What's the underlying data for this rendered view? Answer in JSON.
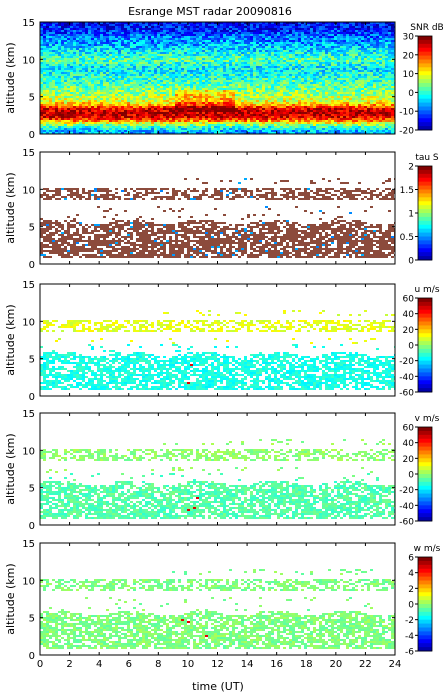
{
  "title": "Esrange MST radar 20090816",
  "xlabel": "time (UT)",
  "chart_data": [
    {
      "type": "heatmap",
      "id": "snr",
      "ylabel": "altitude (km)",
      "xlim": [
        0,
        24
      ],
      "ylim": [
        0,
        15
      ],
      "xticks": [
        "0",
        "2",
        "4",
        "6",
        "8",
        "10",
        "12",
        "14",
        "16",
        "18",
        "20",
        "22",
        "24"
      ],
      "yticks": [
        "0",
        "5",
        "10",
        "15"
      ],
      "colorbar": {
        "label": "SNR dB",
        "range": [
          -20,
          30
        ],
        "ticks": [
          "30",
          "20",
          "10",
          "0",
          "-10",
          "-20"
        ]
      },
      "profile_km": [
        0.5,
        1,
        1.5,
        2,
        2.5,
        3,
        3.5,
        4,
        4.5,
        5,
        6,
        7,
        8,
        9,
        10,
        11,
        12,
        13,
        14,
        15
      ],
      "profile_value": [
        -5,
        0,
        8,
        20,
        26,
        27,
        25,
        16,
        10,
        8,
        5,
        2,
        0,
        -2,
        3,
        -1,
        -5,
        -8,
        -12,
        -14
      ],
      "coverage": "full"
    },
    {
      "type": "heatmap",
      "id": "tau",
      "ylabel": "altitude (km)",
      "xlim": [
        0,
        24
      ],
      "ylim": [
        0,
        15
      ],
      "xticks": [
        "0",
        "2",
        "4",
        "6",
        "8",
        "10",
        "12",
        "14",
        "16",
        "18",
        "20",
        "22",
        "24"
      ],
      "yticks": [
        "0",
        "5",
        "10",
        "15"
      ],
      "colorbar": {
        "label": "tau S",
        "range": [
          0,
          2
        ],
        "ticks": [
          "2",
          "1.5",
          "1",
          "0.5",
          "0"
        ]
      },
      "typical_value": 1.95,
      "coverage": "sparse"
    },
    {
      "type": "heatmap",
      "id": "u",
      "ylabel": "altitude (km)",
      "xlim": [
        0,
        24
      ],
      "ylim": [
        0,
        15
      ],
      "xticks": [
        "0",
        "2",
        "4",
        "6",
        "8",
        "10",
        "12",
        "14",
        "16",
        "18",
        "20",
        "22",
        "24"
      ],
      "yticks": [
        "0",
        "5",
        "10",
        "15"
      ],
      "colorbar": {
        "label": "u m/s",
        "range": [
          -60,
          60
        ],
        "ticks": [
          "60",
          "40",
          "20",
          "0",
          "-20",
          "-40",
          "-60"
        ]
      },
      "value_low_layer": -12,
      "value_upper_layer": 12,
      "coverage": "sparse"
    },
    {
      "type": "heatmap",
      "id": "v",
      "ylabel": "altitude (km)",
      "xlim": [
        0,
        24
      ],
      "ylim": [
        0,
        15
      ],
      "xticks": [
        "0",
        "2",
        "4",
        "6",
        "8",
        "10",
        "12",
        "14",
        "16",
        "18",
        "20",
        "22",
        "24"
      ],
      "yticks": [
        "0",
        "5",
        "10",
        "15"
      ],
      "colorbar": {
        "label": "v m/s",
        "range": [
          -60,
          60
        ],
        "ticks": [
          "60",
          "40",
          "20",
          "0",
          "-20",
          "-40",
          "-60"
        ]
      },
      "value_low_layer": -5,
      "value_upper_layer": 2,
      "coverage": "sparse"
    },
    {
      "type": "heatmap",
      "id": "w",
      "ylabel": "altitude (km)",
      "xlim": [
        0,
        24
      ],
      "ylim": [
        0,
        15
      ],
      "xticks": [
        "0",
        "2",
        "4",
        "6",
        "8",
        "10",
        "12",
        "14",
        "16",
        "18",
        "20",
        "22",
        "24"
      ],
      "yticks": [
        "0",
        "5",
        "10",
        "15"
      ],
      "colorbar": {
        "label": "w m/s",
        "range": [
          -6,
          6
        ],
        "ticks": [
          "6",
          "4",
          "2",
          "0",
          "-2",
          "-4",
          "-6"
        ]
      },
      "value_low_layer": 0,
      "value_upper_layer": 0,
      "coverage": "sparse"
    }
  ]
}
